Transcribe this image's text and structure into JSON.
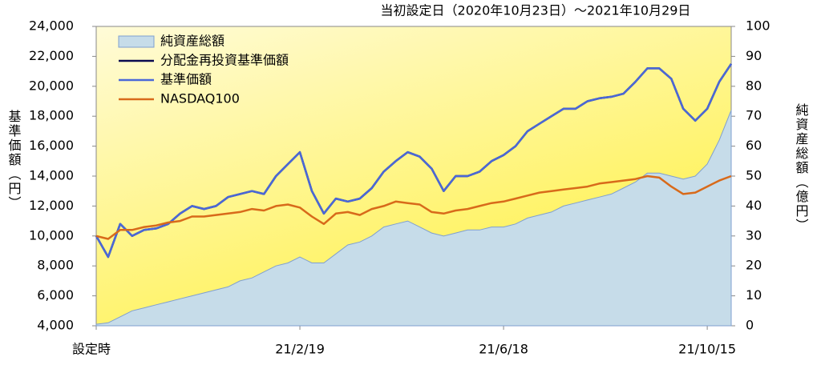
{
  "chart_data": {
    "type": "line",
    "title": "当初設定日（2020年10月23日）～2021年10月29日",
    "y_label": "基準価額（円）",
    "y2_label": "純資産総額（億円）",
    "legend": "upper left",
    "categories": [
      "設定時",
      null,
      null,
      null,
      null,
      null,
      null,
      null,
      null,
      null,
      null,
      null,
      null,
      null,
      null,
      null,
      null,
      "21/2/19",
      null,
      null,
      null,
      null,
      null,
      null,
      null,
      null,
      null,
      null,
      null,
      null,
      null,
      null,
      null,
      null,
      "21/6/18",
      null,
      null,
      null,
      null,
      null,
      null,
      null,
      null,
      null,
      null,
      null,
      null,
      null,
      null,
      null,
      null,
      "21/10/15",
      null,
      null
    ],
    "series": [
      {
        "name": "純資産総額",
        "type": "area",
        "axis": "y2",
        "color": "#c6dce9",
        "values": [
          0.5,
          1,
          3,
          5,
          6,
          7,
          8,
          9,
          10,
          11,
          12,
          13,
          15,
          16,
          18,
          20,
          21,
          23,
          21,
          21,
          24,
          27,
          28,
          30,
          33,
          34,
          35,
          33,
          31,
          30,
          31,
          32,
          32,
          33,
          33,
          34,
          36,
          37,
          38,
          40,
          41,
          42,
          43,
          44,
          46,
          48,
          51,
          51,
          50,
          49,
          50,
          54,
          62,
          72
        ]
      },
      {
        "name": "分配金再投資基準価額",
        "type": "line",
        "color": "#0a0a50",
        "values": [
          10000,
          8600,
          10800,
          10000,
          10400,
          10500,
          10800,
          11500,
          12000,
          11800,
          12000,
          12600,
          12800,
          13000,
          12800,
          14000,
          14800,
          15600,
          13000,
          11500,
          12500,
          12300,
          12500,
          13200,
          14300,
          15000,
          15600,
          15300,
          14500,
          13000,
          14000,
          14000,
          14300,
          15000,
          15400,
          16000,
          17000,
          17500,
          18000,
          18500,
          18500,
          19000,
          19200,
          19300,
          19500,
          20300,
          21200,
          21200,
          20500,
          18500,
          17700,
          18500,
          20300,
          21500
        ]
      },
      {
        "name": "基準価額",
        "type": "line",
        "color": "#4a68d8",
        "values": [
          10000,
          8600,
          10800,
          10000,
          10400,
          10500,
          10800,
          11500,
          12000,
          11800,
          12000,
          12600,
          12800,
          13000,
          12800,
          14000,
          14800,
          15600,
          13000,
          11500,
          12500,
          12300,
          12500,
          13200,
          14300,
          15000,
          15600,
          15300,
          14500,
          13000,
          14000,
          14000,
          14300,
          15000,
          15400,
          16000,
          17000,
          17500,
          18000,
          18500,
          18500,
          19000,
          19200,
          19300,
          19500,
          20300,
          21200,
          21200,
          20500,
          18500,
          17700,
          18500,
          20300,
          21500
        ]
      },
      {
        "name": "NASDAQ100",
        "type": "line",
        "color": "#d86a1a",
        "values": [
          10000,
          9800,
          10400,
          10400,
          10600,
          10700,
          10900,
          11000,
          11300,
          11300,
          11400,
          11500,
          11600,
          11800,
          11700,
          12000,
          12100,
          11900,
          11300,
          10800,
          11500,
          11600,
          11400,
          11800,
          12000,
          12300,
          12200,
          12100,
          11600,
          11500,
          11700,
          11800,
          12000,
          12200,
          12300,
          12500,
          12700,
          12900,
          13000,
          13100,
          13200,
          13300,
          13500,
          13600,
          13700,
          13800,
          14000,
          13900,
          13300,
          12800,
          12900,
          13300,
          13700,
          14000
        ]
      }
    ],
    "ylim": [
      4000,
      24000
    ],
    "yticks": [
      {
        "value": 4000,
        "label": "4,000"
      },
      {
        "value": 6000,
        "label": "6,000"
      },
      {
        "value": 8000,
        "label": "8,000"
      },
      {
        "value": 10000,
        "label": "10,000"
      },
      {
        "value": 12000,
        "label": "12,000"
      },
      {
        "value": 14000,
        "label": "14,000"
      },
      {
        "value": 16000,
        "label": "16,000"
      },
      {
        "value": 18000,
        "label": "18,000"
      },
      {
        "value": 20000,
        "label": "20,000"
      },
      {
        "value": 22000,
        "label": "22,000"
      },
      {
        "value": 24000,
        "label": "24,000"
      }
    ],
    "y2lim": [
      0,
      100
    ],
    "y2ticks": [
      0,
      10,
      20,
      30,
      40,
      50,
      60,
      70,
      80,
      90,
      100
    ]
  }
}
